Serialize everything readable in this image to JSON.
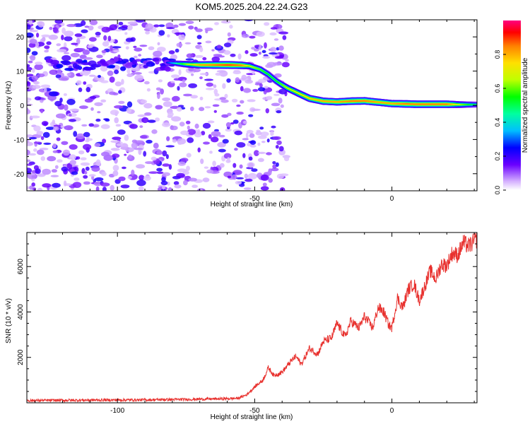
{
  "title": "KOM5.2025.204.22.24.G23",
  "chart_data": [
    {
      "type": "heatmap",
      "xlabel": "Height of straight line (km)",
      "ylabel": "Frequency (Hz)",
      "xlim": [
        -133,
        31
      ],
      "ylim": [
        -25,
        25
      ],
      "x_ticks": [
        -100,
        -50,
        0
      ],
      "x_tick_labels": [
        "-100",
        "-50",
        "0"
      ],
      "y_ticks": [
        -20,
        -10,
        0,
        10,
        20
      ],
      "y_tick_labels": [
        "-20",
        "-10",
        "0",
        "10",
        "20"
      ],
      "colorbar": {
        "label": "Normalized spectral amplitude",
        "range": [
          0,
          1
        ],
        "ticks": [
          0,
          0.2,
          0.4,
          0.6,
          0.8
        ],
        "tick_labels": [
          "0.0",
          "0.2",
          "0.4",
          "0.6",
          "0.8"
        ],
        "colormap": "rainbow (violet → blue → cyan → green → yellow → red → magenta)"
      },
      "signal_trace": {
        "description": "Narrow-band signal track: frequency (Hz) vs height (km)",
        "x": [
          -82,
          -75,
          -70,
          -65,
          -60,
          -55,
          -52,
          -48,
          -45,
          -42,
          -38,
          -34,
          -30,
          -25,
          -20,
          -15,
          -10,
          -5,
          0,
          5,
          10,
          15,
          20,
          25,
          31
        ],
        "y": [
          12.5,
          12,
          11.8,
          11.8,
          11.8,
          11.7,
          11.5,
          10.5,
          9,
          7,
          5,
          3.5,
          2,
          1.2,
          1,
          1.2,
          1.3,
          0.9,
          0.5,
          0.4,
          0.3,
          0.3,
          0.3,
          0.2,
          0.2
        ],
        "peak_amplitude": [
          0.3,
          0.7,
          0.9,
          0.95,
          1,
          0.95,
          0.75,
          0.65,
          0.6,
          0.6,
          0.75,
          0.8,
          0.85,
          0.9,
          0.9,
          0.95,
          0.95,
          0.9,
          0.9,
          0.95,
          0.95,
          0.95,
          0.95,
          0.7,
          0.5
        ]
      },
      "noise_region": "Scattered low-amplitude (0.0–0.3) noise across all frequencies for heights below about -55 km"
    },
    {
      "type": "line",
      "xlabel": "Height of straight line (km)",
      "ylabel": "SNR (10 * v/v)",
      "xlim": [
        -133,
        31
      ],
      "ylim": [
        0,
        7500
      ],
      "x_ticks": [
        -100,
        -50,
        0
      ],
      "x_tick_labels": [
        "-100",
        "-50",
        "0"
      ],
      "y_ticks": [
        2000,
        4000,
        6000
      ],
      "y_tick_labels": [
        "2000",
        "4000",
        "6000"
      ],
      "grid": false,
      "series": [
        {
          "color": "#e8312e",
          "x": [
            -133,
            -110,
            -90,
            -75,
            -60,
            -56,
            -53,
            -50,
            -47,
            -45,
            -43,
            -40,
            -37,
            -35,
            -33,
            -30,
            -27,
            -25,
            -22,
            -20,
            -17,
            -15,
            -12,
            -10,
            -7,
            -5,
            -3,
            -1,
            0,
            2,
            4,
            6,
            8,
            10,
            12,
            14,
            16,
            18,
            20,
            22,
            24,
            26,
            28,
            31
          ],
          "y": [
            100,
            120,
            130,
            150,
            180,
            200,
            350,
            700,
            1000,
            1550,
            1200,
            1350,
            1800,
            2050,
            1700,
            2400,
            2150,
            2700,
            2850,
            3500,
            2900,
            3600,
            3300,
            3800,
            3300,
            4200,
            4000,
            3400,
            3300,
            4600,
            4200,
            5000,
            5250,
            4500,
            5150,
            5800,
            5450,
            6100,
            6050,
            6600,
            6500,
            7050,
            6900,
            7200
          ]
        }
      ]
    }
  ]
}
